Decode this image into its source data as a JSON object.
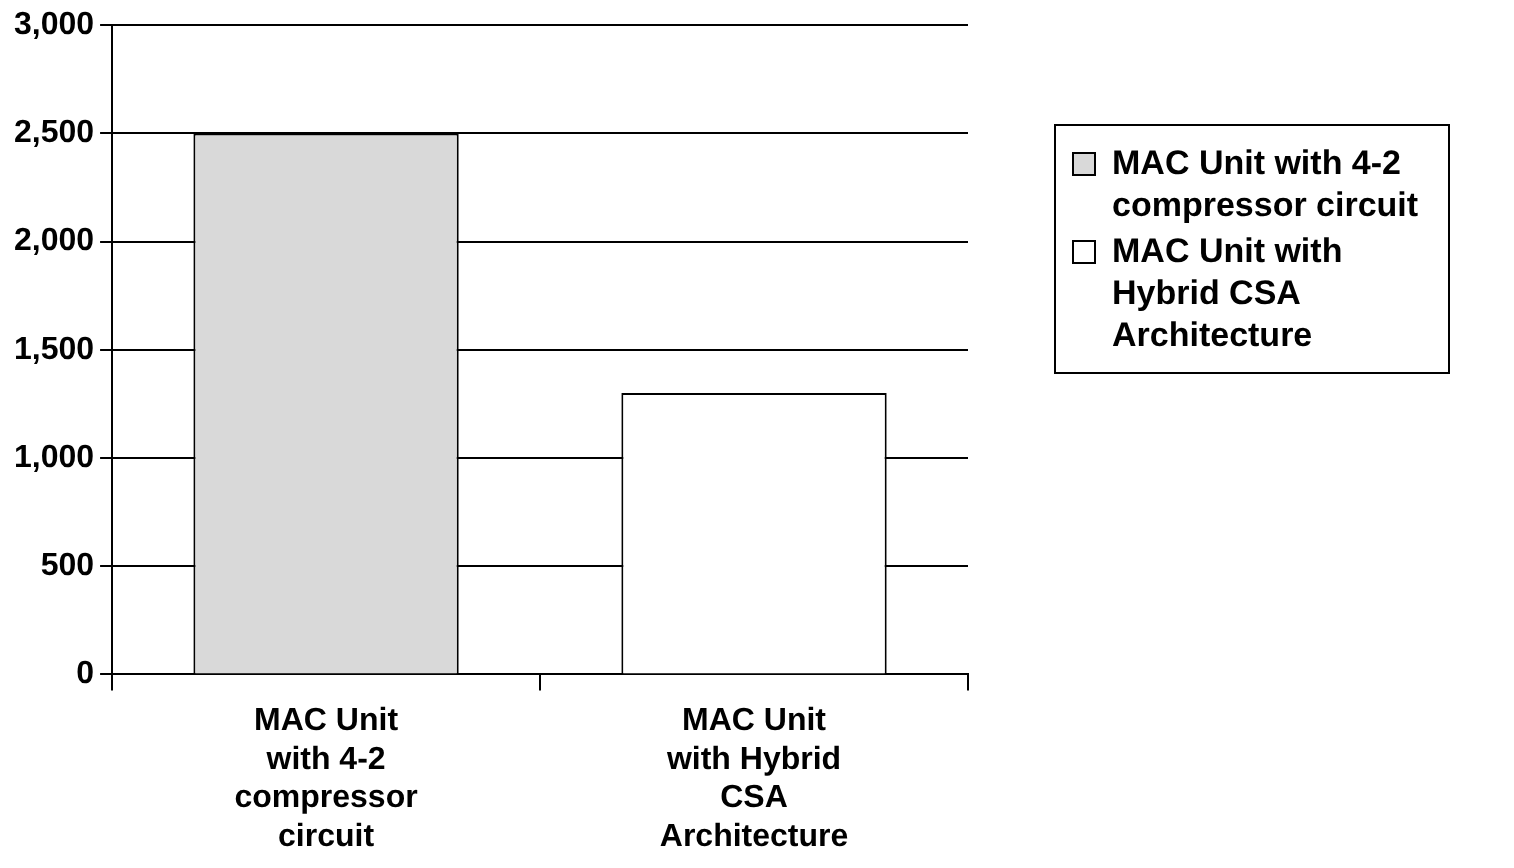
{
  "chart_data": {
    "type": "bar",
    "categories": [
      "MAC Unit with 4-2 compressor circuit",
      "MAC Unit with Hybrid CSA Architecture"
    ],
    "series": [
      {
        "name": "MAC Unit with 4-2 compressor circuit",
        "color": "#d9d9d9",
        "values": [
          2500,
          null
        ]
      },
      {
        "name": "MAC Unit with Hybrid CSA Architecture",
        "color": "#ffffff",
        "values": [
          null,
          1300
        ]
      }
    ],
    "ylim": [
      0,
      3000
    ],
    "yticks": [
      0,
      {
        "value": 500,
        "label": "500"
      },
      {
        "value": 1000,
        "label": "1,000"
      },
      {
        "value": 1500,
        "label": "1,500"
      },
      {
        "value": 2000,
        "label": "2,000"
      },
      {
        "value": 2500,
        "label": "2,500"
      },
      {
        "value": 3000,
        "label": "3,000"
      }
    ],
    "grid": "y",
    "legend": "right"
  }
}
